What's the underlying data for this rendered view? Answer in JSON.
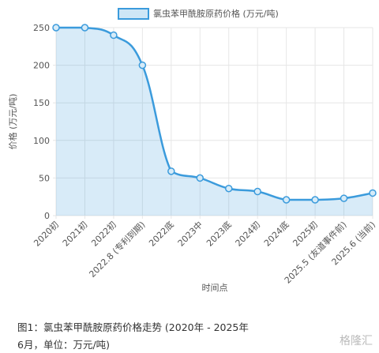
{
  "chart_data": {
    "type": "line",
    "legend": "氯虫苯甲酰胺原药价格 (万元/吨)",
    "y_label": "价格 (万元/吨)",
    "x_label": "时间点",
    "categories": [
      "2020初",
      "2021初",
      "2022初",
      "2022.8 (专利到期)",
      "2022底",
      "2023中",
      "2023底",
      "2024初",
      "2024底",
      "2025初",
      "2025.5 (友道事件前)",
      "2025.6 (当前)"
    ],
    "series": [
      {
        "name": "氯虫苯甲酰胺原药价格 (万元/吨)",
        "color": "#3b9bdc",
        "values": [
          250,
          250,
          240,
          200,
          59,
          50,
          36,
          32,
          21,
          21,
          23,
          30
        ]
      }
    ],
    "ylim": [
      0,
      250
    ],
    "yticks": [
      0,
      50,
      100,
      150,
      200,
      250
    ],
    "grid": true,
    "fill": true
  },
  "caption": "图1：氯虫苯甲酰胺原药价格走势 (2020年 - 2025年6月，单位：万元/吨)",
  "watermark": "格隆汇"
}
